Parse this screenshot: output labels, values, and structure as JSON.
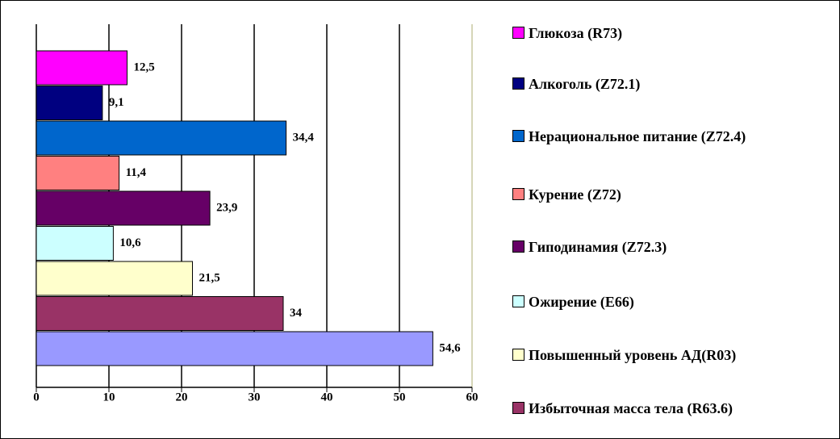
{
  "chart_data": {
    "type": "barh",
    "series": [
      {
        "name": "Глюкоза (R73)",
        "color": "#ff00ff",
        "values": [
          12.5
        ],
        "value_labels": [
          "12,5"
        ]
      },
      {
        "name": "Алкоголь (Z72.1)",
        "color": "#000080",
        "values": [
          9.1
        ],
        "value_labels": [
          "9,1"
        ]
      },
      {
        "name": "Нерациональное питание (Z72.4)",
        "color": "#0066cc",
        "values": [
          34.4
        ],
        "value_labels": [
          "34,4"
        ]
      },
      {
        "name": "Курение (Z72)",
        "color": "#ff8080",
        "values": [
          11.4
        ],
        "value_labels": [
          "11,4"
        ]
      },
      {
        "name": "Гиподинамия (Z72.3)",
        "color": "#660066",
        "values": [
          23.9
        ],
        "value_labels": [
          "23,9"
        ]
      },
      {
        "name": "Ожирение (E66)",
        "color": "#ccffff",
        "values": [
          10.6
        ],
        "value_labels": [
          "10,6"
        ]
      },
      {
        "name": "Повышенный уровень АД(R03)",
        "color": "#ffffcc",
        "values": [
          21.5
        ],
        "value_labels": [
          "21,5"
        ]
      },
      {
        "name": "Избыточная масса тела (R63.6)",
        "color": "#993366",
        "values": [
          34
        ],
        "value_labels": [
          "34"
        ]
      },
      {
        "name": null,
        "color": "#9999ff",
        "values": [
          54.6
        ],
        "value_labels": [
          "54,6"
        ]
      }
    ],
    "xlim": [
      0,
      60
    ],
    "xticks": [
      0,
      10,
      20,
      30,
      40,
      50,
      60
    ],
    "grid": true
  }
}
